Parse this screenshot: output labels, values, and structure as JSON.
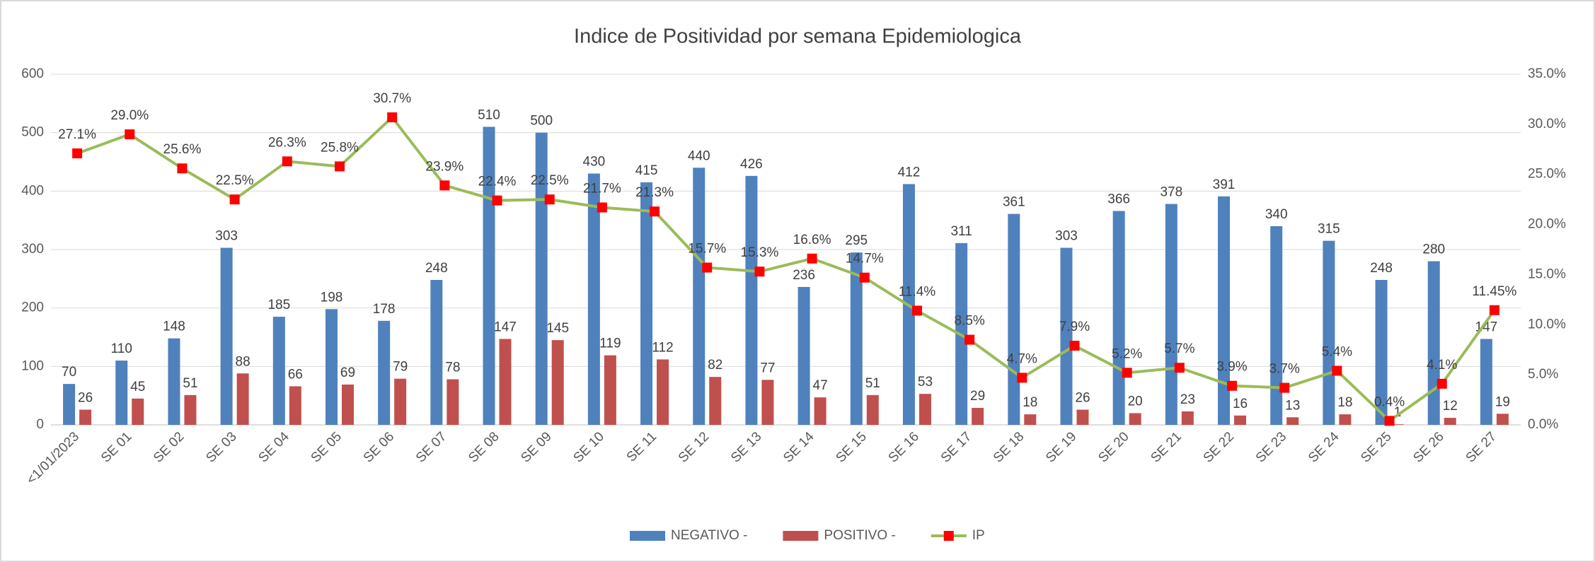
{
  "chart_data": {
    "type": "bar",
    "title": "Indice de Positividad por semana Epidemiologica",
    "categories": [
      "<1/01/2023",
      "SE 01",
      "SE 02",
      "SE 03",
      "SE 04",
      "SE 05",
      "SE 06",
      "SE 07",
      "SE 08",
      "SE 09",
      "SE 10",
      "SE 11",
      "SE 12",
      "SE 13",
      "SE 14",
      "SE 15",
      "SE 16",
      "SE 17",
      "SE 18",
      "SE 19",
      "SE 20",
      "SE 21",
      "SE 22",
      "SE 23",
      "SE 24",
      "SE 25",
      "SE 26",
      "SE 27"
    ],
    "series": [
      {
        "name": "NEGATIVO -",
        "color": "#4f81bd",
        "values": [
          70,
          110,
          148,
          303,
          185,
          198,
          178,
          248,
          510,
          500,
          430,
          415,
          440,
          426,
          236,
          295,
          412,
          311,
          361,
          303,
          366,
          378,
          391,
          340,
          315,
          248,
          280,
          147
        ]
      },
      {
        "name": "POSITIVO -",
        "color": "#c0504d",
        "values": [
          26,
          45,
          51,
          88,
          66,
          69,
          79,
          78,
          147,
          145,
          119,
          112,
          82,
          77,
          47,
          51,
          53,
          29,
          18,
          26,
          20,
          23,
          16,
          13,
          18,
          1,
          12,
          19
        ]
      },
      {
        "name": "IP",
        "type": "line",
        "axis": "y2",
        "color": "#9bbb59",
        "marker_color": "#ff0000",
        "values": [
          27.1,
          29.0,
          25.6,
          22.5,
          26.3,
          25.8,
          30.7,
          23.9,
          22.4,
          22.5,
          21.7,
          21.3,
          15.7,
          15.3,
          16.6,
          14.7,
          11.4,
          8.5,
          4.7,
          7.9,
          5.2,
          5.7,
          3.9,
          3.7,
          5.4,
          0.4,
          4.1,
          11.45
        ],
        "value_labels": [
          "27.1%",
          "29.0%",
          "25.6%",
          "22.5%",
          "26.3%",
          "25.8%",
          "30.7%",
          "23.9%",
          "22.4%",
          "22.5%",
          "21.7%",
          "21.3%",
          "15.7%",
          "15.3%",
          "16.6%",
          "14.7%",
          "11.4%",
          "8.5%",
          "4.7%",
          "7.9%",
          "5.2%",
          "5.7%",
          "3.9%",
          "3.7%",
          "5.4%",
          "0.4%",
          "4.1%",
          "11.45%"
        ]
      }
    ],
    "ylim": [
      0,
      600
    ],
    "yticks": [
      0,
      100,
      200,
      300,
      400,
      500,
      600
    ],
    "y2lim": [
      0,
      35
    ],
    "y2ticks": [
      {
        "value": 0,
        "label": "0.0%"
      },
      {
        "value": 5,
        "label": "5.0%"
      },
      {
        "value": 10,
        "label": "10.0%"
      },
      {
        "value": 15,
        "label": "15.0%"
      },
      {
        "value": 20,
        "label": "20.0%"
      },
      {
        "value": 25,
        "label": "25.0%"
      },
      {
        "value": 30,
        "label": "30.0%"
      },
      {
        "value": 35,
        "label": "35.0%"
      }
    ],
    "legend": "bottom"
  }
}
